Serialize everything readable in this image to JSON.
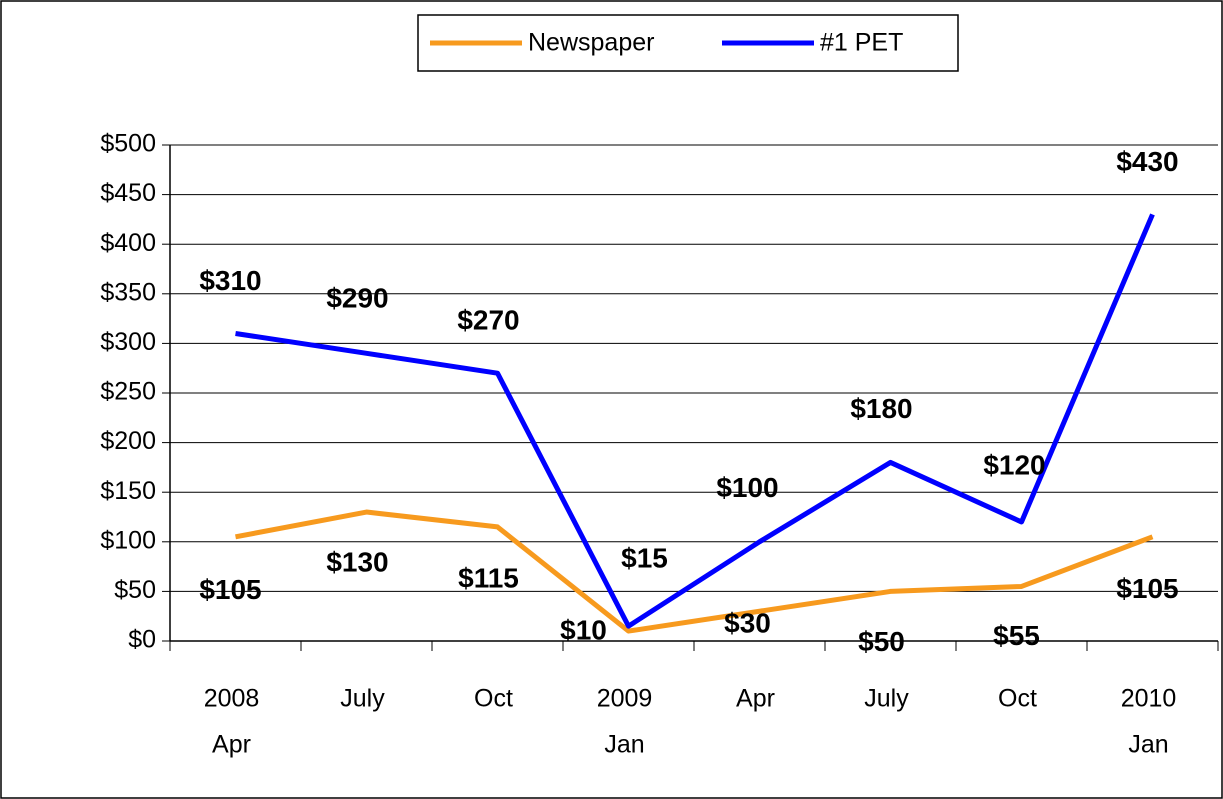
{
  "chart_data": {
    "type": "line",
    "categories": [
      [
        "2008",
        "Apr"
      ],
      [
        "July"
      ],
      [
        "Oct"
      ],
      [
        "2009",
        "Jan"
      ],
      [
        "Apr"
      ],
      [
        "July"
      ],
      [
        "Oct"
      ],
      [
        "2010",
        "Jan"
      ]
    ],
    "series": [
      {
        "name": "Newspaper",
        "color": "#f79a1e",
        "values": [
          105,
          130,
          115,
          10,
          30,
          50,
          55,
          105
        ],
        "value_labels": [
          "$105",
          "$130",
          "$115",
          "$10",
          "$30",
          "$50",
          "$55",
          "$105"
        ]
      },
      {
        "name": "#1 PET",
        "color": "#0000ff",
        "values": [
          310,
          290,
          270,
          15,
          100,
          180,
          120,
          430
        ],
        "value_labels": [
          "$310",
          "$290",
          "$270",
          "$15",
          "$100",
          "$180",
          "$120",
          "$430"
        ]
      }
    ],
    "ylim": [
      0,
      500
    ],
    "yticks": [
      {
        "value": 0,
        "label": "$0"
      },
      {
        "value": 50,
        "label": "$50"
      },
      {
        "value": 100,
        "label": "$100"
      },
      {
        "value": 150,
        "label": "$150"
      },
      {
        "value": 200,
        "label": "$200"
      },
      {
        "value": 250,
        "label": "$250"
      },
      {
        "value": 300,
        "label": "$300"
      },
      {
        "value": 350,
        "label": "$350"
      },
      {
        "value": 400,
        "label": "$400"
      },
      {
        "value": 450,
        "label": "$450"
      },
      {
        "value": 500,
        "label": "$500"
      }
    ],
    "grid": true,
    "legend": "top"
  }
}
